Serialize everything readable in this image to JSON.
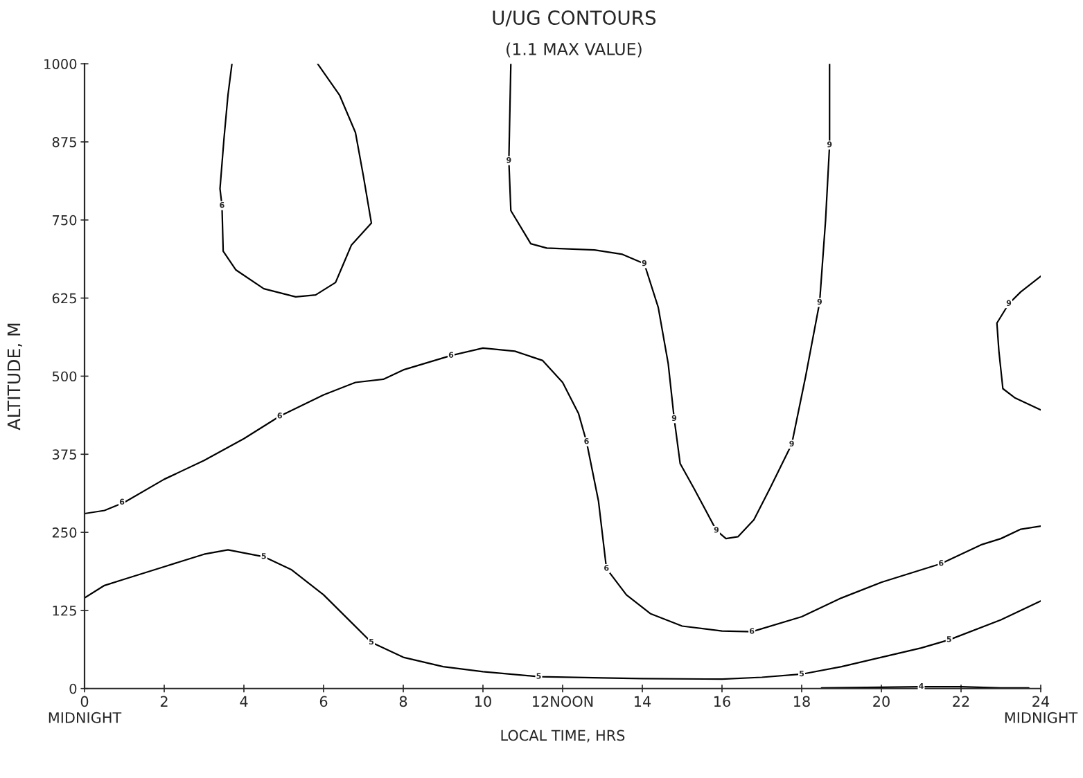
{
  "chart_data": {
    "type": "line",
    "title": "U/UG CONTOURS",
    "subtitle": "(1.1 MAX VALUE)",
    "xlabel": "LOCAL TIME, HRS",
    "ylabel": "ALTITUDE, M",
    "xlim": [
      0,
      24
    ],
    "ylim": [
      0,
      1000
    ],
    "xticks": [
      {
        "value": 0,
        "label": "0\nMIDNIGHT"
      },
      2,
      4,
      6,
      8,
      10,
      {
        "value": 12,
        "label": "12NOON"
      },
      14,
      16,
      18,
      20,
      22,
      {
        "value": 24,
        "label": "24\nMIDNIGHT"
      }
    ],
    "yticks": [
      0,
      125,
      250,
      375,
      500,
      625,
      750,
      875,
      1000
    ],
    "grid": false,
    "marker": "none",
    "line_style": "solid",
    "series": [
      {
        "color": "#000000",
        "x": [
          0,
          0.5,
          1,
          2,
          3,
          4,
          4.9,
          6,
          6.8,
          7.5,
          8,
          9.2,
          10,
          10.8,
          11.5,
          12,
          12.4,
          12.6,
          12.9,
          13.1,
          13.6,
          14.2,
          15,
          16,
          16.75,
          18,
          19,
          20,
          21.5,
          22.5,
          23,
          23.5,
          24
        ],
        "values": [
          280,
          285,
          298,
          335,
          365,
          400,
          436,
          470,
          490,
          495,
          510,
          533,
          545,
          540,
          525,
          490,
          440,
          395,
          300,
          192,
          150,
          120,
          100,
          92,
          91,
          115,
          145,
          170,
          200,
          230,
          240,
          255,
          260
        ]
      },
      {
        "color": "#000000",
        "x": [
          0,
          0.5,
          1,
          2,
          3,
          3.6,
          4.5,
          5.2,
          6,
          7.2,
          8,
          9,
          10,
          11.4,
          13,
          14,
          16,
          17,
          18,
          19,
          20,
          21,
          21.7,
          23,
          24
        ],
        "values": [
          145,
          165,
          175,
          195,
          215,
          222,
          211,
          190,
          150,
          74,
          50,
          35,
          27,
          19,
          17,
          16,
          15,
          18,
          23,
          35,
          50,
          65,
          78,
          110,
          140
        ]
      },
      {
        "color": "#000000",
        "x": [
          10.7,
          10.65,
          10.7,
          11.2,
          11.6,
          12.8,
          13.5,
          14.05,
          14.4,
          14.65,
          14.8,
          14.95,
          15.3,
          15.86,
          16.1,
          16.4,
          16.8,
          17.2,
          17.75,
          18.1,
          18.45,
          18.6,
          18.7,
          18.7
        ],
        "values": [
          1000,
          845,
          765,
          712,
          705,
          702,
          695,
          680,
          610,
          520,
          432,
          360,
          320,
          253,
          240,
          243,
          270,
          320,
          391,
          500,
          618,
          750,
          870,
          1000
        ]
      },
      {
        "color": "#000000",
        "x": [
          3.7,
          3.6,
          3.5,
          3.4,
          3.45,
          3.48,
          3.8,
          4.5,
          5.3,
          5.8,
          6.3,
          6.5,
          6.7,
          7.2,
          7.0,
          6.8,
          6.4,
          5.85
        ],
        "values": [
          1000,
          950,
          880,
          800,
          773,
          700,
          670,
          640,
          627,
          630,
          650,
          680,
          710,
          745,
          820,
          890,
          950,
          1000
        ]
      },
      {
        "color": "#000000",
        "x": [
          24,
          23.5,
          23.2,
          22.9,
          22.95,
          23.05,
          23.36,
          24
        ],
        "values": [
          660,
          635,
          616,
          585,
          540,
          480,
          465,
          446
        ]
      },
      {
        "color": "#000000",
        "x": [
          18.5,
          20,
          21,
          22,
          23,
          23.7
        ],
        "values": [
          1,
          2,
          3,
          3,
          1,
          1
        ]
      }
    ],
    "annotations": [
      {
        "text": "6",
        "x": 0.94,
        "y": 298
      },
      {
        "text": "6",
        "x": 4.9,
        "y": 436
      },
      {
        "text": "6",
        "x": 9.2,
        "y": 533
      },
      {
        "text": "6",
        "x": 12.6,
        "y": 395
      },
      {
        "text": "6",
        "x": 13.1,
        "y": 192
      },
      {
        "text": "6",
        "x": 16.75,
        "y": 91
      },
      {
        "text": "6",
        "x": 21.5,
        "y": 200
      },
      {
        "text": "5",
        "x": 4.5,
        "y": 211
      },
      {
        "text": "5",
        "x": 7.2,
        "y": 74
      },
      {
        "text": "5",
        "x": 11.4,
        "y": 19
      },
      {
        "text": "5",
        "x": 18.0,
        "y": 23
      },
      {
        "text": "5",
        "x": 21.7,
        "y": 78
      },
      {
        "text": "9",
        "x": 10.65,
        "y": 845
      },
      {
        "text": "9",
        "x": 14.05,
        "y": 680
      },
      {
        "text": "9",
        "x": 14.8,
        "y": 432
      },
      {
        "text": "9",
        "x": 15.86,
        "y": 253
      },
      {
        "text": "9",
        "x": 17.75,
        "y": 391
      },
      {
        "text": "9",
        "x": 18.45,
        "y": 618
      },
      {
        "text": "9",
        "x": 18.7,
        "y": 870
      },
      {
        "text": "6",
        "x": 3.45,
        "y": 773
      },
      {
        "text": "9",
        "x": 23.2,
        "y": 616
      },
      {
        "text": "4",
        "x": 21.0,
        "y": 3
      }
    ]
  }
}
